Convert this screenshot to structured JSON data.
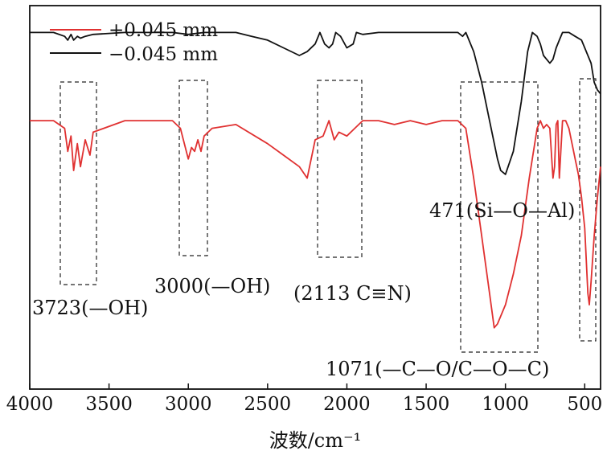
{
  "chart_data": {
    "type": "line",
    "title": "",
    "xlabel": "波数/cm⁻¹",
    "ylabel": "",
    "xlim": [
      4000,
      400
    ],
    "ylim": [
      0,
      100
    ],
    "xticks": [
      "4000",
      "3500",
      "3000",
      "2500",
      "2000",
      "1500",
      "1000",
      "500"
    ],
    "xtick_values": [
      4000,
      3500,
      3000,
      2500,
      2000,
      1500,
      1000,
      500
    ],
    "legend_position": "top-left",
    "series": [
      {
        "name": "+0.045 mm",
        "color": "#e03131",
        "x": [
          4000,
          3850,
          3780,
          3760,
          3740,
          3723,
          3700,
          3680,
          3650,
          3620,
          3600,
          3400,
          3100,
          3050,
          3000,
          2980,
          2960,
          2940,
          2920,
          2900,
          2850,
          2700,
          2500,
          2400,
          2300,
          2250,
          2200,
          2150,
          2113,
          2080,
          2050,
          2000,
          1950,
          1900,
          1800,
          1700,
          1600,
          1500,
          1400,
          1300,
          1250,
          1200,
          1150,
          1100,
          1071,
          1050,
          1000,
          950,
          900,
          850,
          800,
          780,
          760,
          740,
          720,
          700,
          690,
          680,
          670,
          660,
          640,
          620,
          600,
          580,
          560,
          540,
          520,
          500,
          480,
          471,
          460,
          440,
          420,
          400
        ],
        "values": [
          70,
          70,
          68,
          62,
          66,
          57,
          64,
          58,
          65,
          61,
          67,
          70,
          70,
          68,
          60,
          63,
          62,
          65,
          62,
          66,
          68,
          69,
          64,
          61,
          58,
          55,
          65,
          66,
          70,
          65,
          67,
          66,
          68,
          70,
          70,
          69,
          70,
          69,
          70,
          70,
          68,
          55,
          40,
          25,
          16,
          17,
          22,
          30,
          40,
          55,
          68,
          70,
          68,
          69,
          68,
          55,
          58,
          69,
          70,
          55,
          70,
          70,
          68,
          64,
          60,
          56,
          50,
          42,
          25,
          22,
          28,
          40,
          50,
          58
        ]
      },
      {
        "name": "−0.045 mm",
        "color": "#111111",
        "x": [
          4000,
          3850,
          3780,
          3760,
          3740,
          3723,
          3700,
          3680,
          3650,
          3600,
          3400,
          3100,
          3000,
          2900,
          2700,
          2600,
          2500,
          2400,
          2300,
          2250,
          2200,
          2170,
          2140,
          2113,
          2090,
          2070,
          2040,
          2000,
          1960,
          1940,
          1900,
          1800,
          1700,
          1600,
          1500,
          1400,
          1300,
          1270,
          1250,
          1200,
          1150,
          1100,
          1050,
          1030,
          1000,
          950,
          900,
          860,
          830,
          800,
          780,
          760,
          740,
          720,
          700,
          680,
          660,
          640,
          600,
          560,
          520,
          500,
          480,
          460,
          440,
          420,
          400
        ],
        "values": [
          93,
          93,
          92,
          91,
          92.5,
          91,
          92,
          91.5,
          92,
          92.5,
          93,
          93,
          92.5,
          93,
          93,
          92,
          91,
          89,
          87,
          88,
          90,
          93,
          90,
          89,
          90,
          93,
          92,
          89,
          90,
          93,
          92.5,
          93,
          93,
          93,
          93,
          93,
          93,
          92,
          93,
          88,
          80,
          70,
          60,
          57,
          56,
          62,
          75,
          88,
          93,
          92,
          90,
          87,
          86,
          85,
          86,
          89,
          91,
          93,
          93,
          92,
          91,
          89,
          87,
          85,
          80,
          78,
          77
        ]
      }
    ],
    "annotations": [
      {
        "text": "3723(—OH)",
        "x_range": [
          3800,
          3580
        ]
      },
      {
        "text": "3000(—OH)",
        "x_range": [
          3050,
          2880
        ]
      },
      {
        "text": "(2113 C≡N)",
        "x_range": [
          2170,
          1910
        ]
      },
      {
        "text": "471(Si—O—Al)",
        "x_range": [
          530,
          430
        ]
      },
      {
        "text": "1071(—C—O/C—O—C)",
        "x_range": [
          1270,
          790
        ]
      }
    ]
  }
}
